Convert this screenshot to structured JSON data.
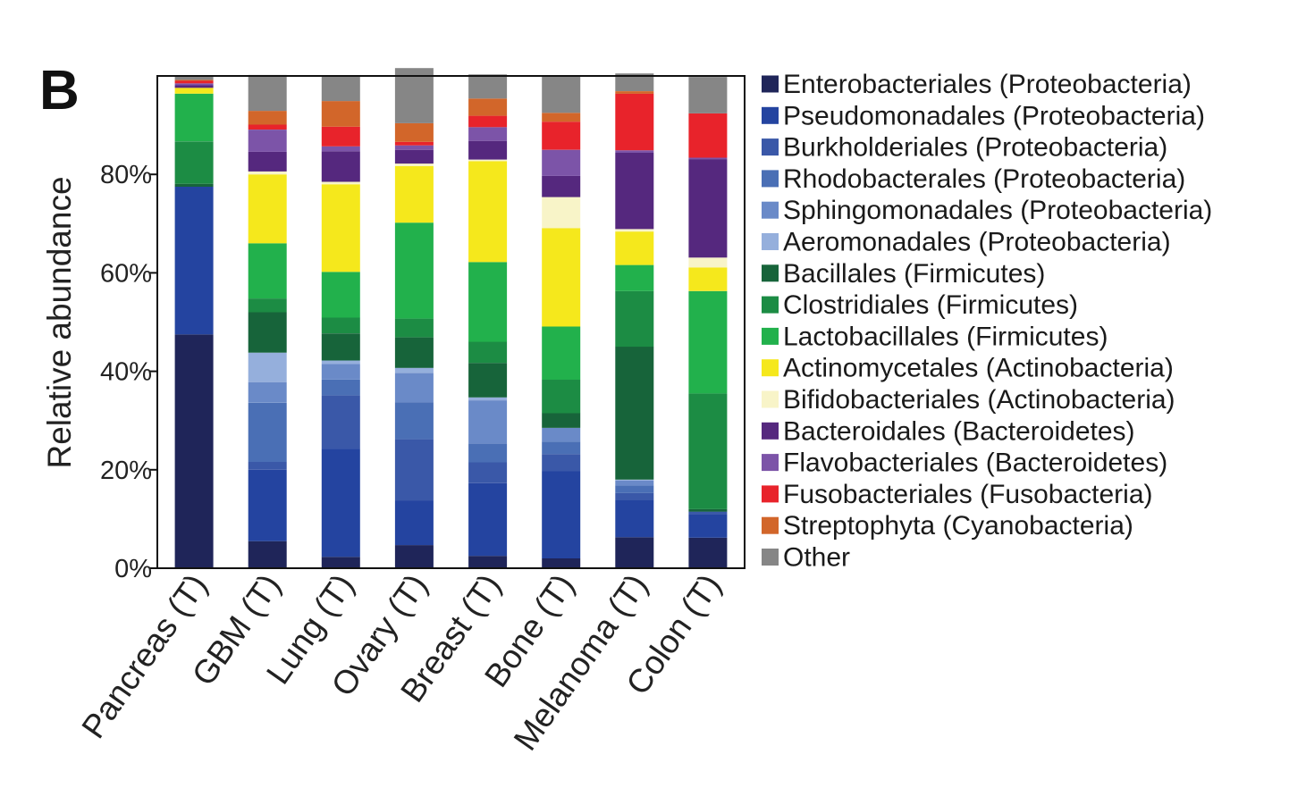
{
  "panel_label": "B",
  "chart_data": {
    "type": "bar",
    "stacked": true,
    "ylabel": "Relative abundance",
    "ylim": [
      0,
      100
    ],
    "yticks": [
      0,
      20,
      40,
      60,
      80
    ],
    "ytick_labels": [
      "0%",
      "20%",
      "40%",
      "60%",
      "80%"
    ],
    "grid": false,
    "legend_position": "right",
    "categories": [
      "Pancreas (T)",
      "GBM (T)",
      "Lung (T)",
      "Ovary (T)",
      "Breast (T)",
      "Bone (T)",
      "Melanoma (T)",
      "Colon (T)"
    ],
    "series": [
      {
        "name": "Enterobacteriales (Proteobacteria)",
        "color": "#1f2559",
        "values": [
          47.5,
          5.5,
          2.3,
          4.7,
          2.5,
          2.0,
          6.3,
          6.2
        ]
      },
      {
        "name": "Pseudomonadales (Proteobacteria)",
        "color": "#2444a0",
        "values": [
          30.0,
          14.5,
          22.0,
          9.0,
          14.8,
          17.7,
          7.5,
          4.8
        ]
      },
      {
        "name": "Burkholderiales (Proteobacteria)",
        "color": "#3a58a8",
        "values": [
          0,
          1.6,
          10.8,
          12.5,
          4.2,
          3.5,
          1.5,
          0.5
        ]
      },
      {
        "name": "Rhodobacterales (Proteobacteria)",
        "color": "#4a6fb5",
        "values": [
          0,
          12.0,
          3.2,
          7.5,
          3.8,
          2.5,
          1.5,
          0
        ]
      },
      {
        "name": "Sphingomonadales (Proteobacteria)",
        "color": "#6a8ac8",
        "values": [
          0,
          4.2,
          3.2,
          6.0,
          8.8,
          2.8,
          1.0,
          0
        ]
      },
      {
        "name": "Aeromonadales (Proteobacteria)",
        "color": "#95afdc",
        "values": [
          0,
          6.0,
          0.7,
          1.0,
          0.6,
          0,
          0.2,
          0
        ]
      },
      {
        "name": "Bacillales (Firmicutes)",
        "color": "#17643a",
        "values": [
          0.6,
          8.2,
          5.5,
          6.2,
          7.0,
          3.0,
          27.0,
          0.5
        ]
      },
      {
        "name": "Clostridiales (Firmicutes)",
        "color": "#1c8c44",
        "values": [
          8.6,
          2.8,
          3.2,
          3.8,
          4.3,
          6.8,
          11.3,
          23.5
        ]
      },
      {
        "name": "Lactobacillales (Firmicutes)",
        "color": "#22b14c",
        "values": [
          9.7,
          11.2,
          9.3,
          19.5,
          16.2,
          10.8,
          5.3,
          20.8
        ]
      },
      {
        "name": "Actinomycetales (Actinobacteria)",
        "color": "#f5e81c",
        "values": [
          1.2,
          14.0,
          17.8,
          11.5,
          20.5,
          20.0,
          6.8,
          4.8
        ]
      },
      {
        "name": "Bifidobacteriales (Actinobacteria)",
        "color": "#f8f4c8",
        "values": [
          0,
          0.6,
          0.5,
          0.5,
          0.3,
          6.3,
          0.5,
          2.0
        ]
      },
      {
        "name": "Bacteroidales (Bacteroidetes)",
        "color": "#55287e",
        "values": [
          0.5,
          4.0,
          6.2,
          2.8,
          3.8,
          4.3,
          15.5,
          20.0
        ]
      },
      {
        "name": "Flavobacteriales (Bacteroidetes)",
        "color": "#7c54a8",
        "values": [
          0.4,
          4.5,
          1.0,
          0.9,
          2.8,
          5.3,
          0.5,
          0.3
        ]
      },
      {
        "name": "Fusobacteriales (Fusobacteria)",
        "color": "#e8232b",
        "values": [
          0.5,
          1.0,
          4.0,
          0.7,
          2.3,
          5.7,
          11.5,
          9.0
        ]
      },
      {
        "name": "Streptophyta (Cyanobacteria)",
        "color": "#d2662a",
        "values": [
          0.2,
          2.8,
          5.2,
          3.8,
          3.5,
          1.8,
          0.5,
          0
        ]
      },
      {
        "name": "Other",
        "color": "#868686",
        "values": [
          0.8,
          7.3,
          5.1,
          11.2,
          4.9,
          7.5,
          3.6,
          7.4
        ]
      }
    ]
  }
}
